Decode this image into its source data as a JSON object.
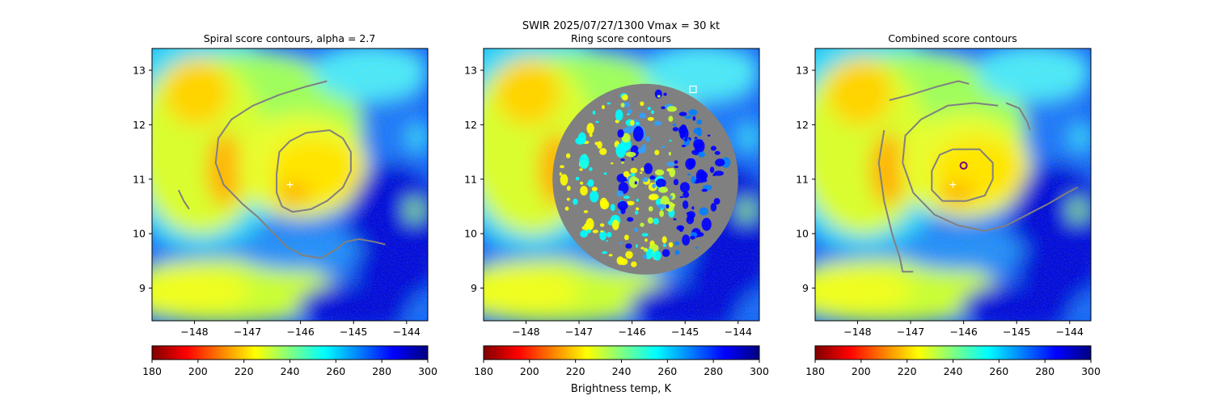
{
  "figure": {
    "suptitle_line1": "SWIR  2025/07/27/1300    Vmax = 30 kt",
    "colorbar_label": "Brightness temp, K"
  },
  "colormap": {
    "name": "jet_r",
    "stops": [
      "#800000",
      "#ff0000",
      "#ff8000",
      "#ffff00",
      "#80ff80",
      "#00ffff",
      "#0080ff",
      "#0000ff",
      "#000080"
    ]
  },
  "chart_data": [
    {
      "type": "heatmap",
      "title": "Spiral score contours, alpha =  2.7",
      "xlim": [
        -148.8,
        -143.6
      ],
      "ylim": [
        8.4,
        13.4
      ],
      "xticks": [
        -148,
        -147,
        -146,
        -145,
        -144
      ],
      "yticks": [
        9,
        10,
        11,
        12,
        13
      ],
      "colorbar": {
        "range": [
          180,
          300
        ],
        "ticks": [
          180,
          200,
          220,
          240,
          260,
          280,
          300
        ]
      },
      "markers": [
        {
          "symbol": "+",
          "x": -146.2,
          "y": 10.9,
          "color": "#ffffff"
        }
      ],
      "contours": [
        [
          [
            -145.45,
            11.9
          ],
          [
            -145.2,
            11.75
          ],
          [
            -145.05,
            11.5
          ],
          [
            -145.05,
            11.15
          ],
          [
            -145.2,
            10.85
          ],
          [
            -145.5,
            10.6
          ],
          [
            -145.8,
            10.45
          ],
          [
            -146.15,
            10.4
          ],
          [
            -146.35,
            10.5
          ],
          [
            -146.45,
            10.75
          ],
          [
            -146.45,
            11.1
          ],
          [
            -146.4,
            11.5
          ],
          [
            -146.2,
            11.7
          ],
          [
            -145.9,
            11.85
          ],
          [
            -145.45,
            11.9
          ]
        ],
        [
          [
            -148.3,
            10.8
          ],
          [
            -148.2,
            10.6
          ],
          [
            -148.1,
            10.45
          ]
        ],
        [
          [
            -145.5,
            12.8
          ],
          [
            -145.9,
            12.7
          ],
          [
            -146.4,
            12.55
          ],
          [
            -146.9,
            12.35
          ],
          [
            -147.3,
            12.1
          ],
          [
            -147.55,
            11.75
          ],
          [
            -147.6,
            11.3
          ],
          [
            -147.45,
            10.9
          ],
          [
            -147.1,
            10.55
          ],
          [
            -146.8,
            10.3
          ],
          [
            -146.5,
            10.0
          ],
          [
            -146.25,
            9.75
          ],
          [
            -145.95,
            9.6
          ],
          [
            -145.6,
            9.55
          ],
          [
            -145.35,
            9.7
          ],
          [
            -145.15,
            9.85
          ],
          [
            -144.9,
            9.9
          ],
          [
            -144.6,
            9.85
          ],
          [
            -144.4,
            9.8
          ]
        ]
      ]
    },
    {
      "type": "heatmap",
      "title": "Ring score contours",
      "xlim": [
        -148.8,
        -143.6
      ],
      "ylim": [
        8.4,
        13.4
      ],
      "xticks": [
        -148,
        -147,
        -146,
        -145,
        -144
      ],
      "yticks": [
        9,
        10,
        11,
        12,
        13
      ],
      "colorbar": {
        "range": [
          180,
          300
        ],
        "ticks": [
          180,
          200,
          220,
          240,
          260,
          280,
          300
        ]
      },
      "markers": [
        {
          "symbol": "square",
          "x": -144.85,
          "y": 12.65,
          "color": "#ffffff"
        }
      ],
      "contour_region": {
        "center": [
          -145.75,
          11.0
        ],
        "radius": [
          1.75,
          1.75
        ]
      },
      "contours": []
    },
    {
      "type": "heatmap",
      "title": "Combined score contours",
      "xlim": [
        -148.8,
        -143.6
      ],
      "ylim": [
        8.4,
        13.4
      ],
      "xticks": [
        -148,
        -147,
        -146,
        -145,
        -144
      ],
      "yticks": [
        9,
        10,
        11,
        12,
        13
      ],
      "colorbar": {
        "range": [
          180,
          300
        ],
        "ticks": [
          180,
          200,
          220,
          240,
          260,
          280,
          300
        ]
      },
      "markers": [
        {
          "symbol": "+",
          "x": -146.2,
          "y": 10.9,
          "color": "#ffffff"
        },
        {
          "symbol": "circle",
          "x": -146.0,
          "y": 11.25,
          "color": "#800080"
        }
      ],
      "contours": [
        [
          [
            -146.2,
            11.55
          ],
          [
            -145.7,
            11.55
          ],
          [
            -145.45,
            11.3
          ],
          [
            -145.45,
            11.0
          ],
          [
            -145.6,
            10.7
          ],
          [
            -145.95,
            10.6
          ],
          [
            -146.4,
            10.6
          ],
          [
            -146.6,
            10.8
          ],
          [
            -146.6,
            11.15
          ],
          [
            -146.45,
            11.45
          ],
          [
            -146.2,
            11.55
          ]
        ],
        [
          [
            -145.35,
            12.35
          ],
          [
            -145.8,
            12.4
          ],
          [
            -146.3,
            12.35
          ],
          [
            -146.8,
            12.1
          ],
          [
            -147.1,
            11.8
          ],
          [
            -147.15,
            11.3
          ],
          [
            -146.95,
            10.75
          ],
          [
            -146.55,
            10.35
          ],
          [
            -146.1,
            10.15
          ],
          [
            -145.6,
            10.05
          ],
          [
            -145.2,
            10.15
          ],
          [
            -144.8,
            10.35
          ],
          [
            -144.4,
            10.55
          ],
          [
            -144.05,
            10.75
          ],
          [
            -143.85,
            10.85
          ]
        ],
        [
          [
            -147.5,
            11.9
          ],
          [
            -147.6,
            11.3
          ],
          [
            -147.5,
            10.6
          ],
          [
            -147.35,
            10.0
          ],
          [
            -147.2,
            9.55
          ],
          [
            -147.15,
            9.3
          ],
          [
            -146.95,
            9.3
          ]
        ],
        [
          [
            -147.4,
            12.45
          ],
          [
            -147.0,
            12.55
          ],
          [
            -146.5,
            12.7
          ],
          [
            -146.1,
            12.8
          ],
          [
            -145.9,
            12.75
          ]
        ],
        [
          [
            -145.2,
            12.4
          ],
          [
            -144.95,
            12.3
          ],
          [
            -144.8,
            12.05
          ],
          [
            -144.75,
            11.9
          ]
        ]
      ]
    }
  ]
}
